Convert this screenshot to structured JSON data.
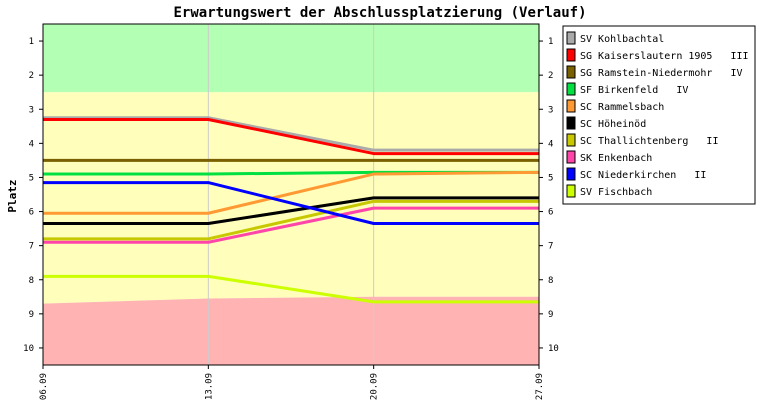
{
  "chart_data": {
    "type": "line",
    "title": "Erwartungswert der Abschlussplatzierung (Verlauf)",
    "ylabel": "Platz",
    "xlabel": "",
    "x": [
      "06.09",
      "13.09",
      "20.09",
      "27.09"
    ],
    "ylim": [
      0.5,
      10.5
    ],
    "y_inverted": true,
    "y_ticks": [
      "1",
      "2",
      "3",
      "4",
      "5",
      "6",
      "7",
      "8",
      "9",
      "10"
    ],
    "bands": [
      {
        "name": "aufstieg",
        "color": "#b3ffb3",
        "upper": [
          2.5,
          2.5,
          2.5,
          2.5
        ]
      },
      {
        "name": "mittelfeld",
        "color": "#ffffbb",
        "upper": [
          8.7,
          8.55,
          8.5,
          8.5
        ]
      },
      {
        "name": "abstieg",
        "color": "#ffb3b3",
        "upper": [
          10.5,
          10.5,
          10.5,
          10.5
        ]
      }
    ],
    "legend_position": "top-right",
    "series": [
      {
        "name": "SV Kohlbachtal",
        "color": "#aaaaaa",
        "values": [
          3.25,
          3.25,
          4.2,
          4.2
        ]
      },
      {
        "name": "SG Kaiserslautern 1905   III",
        "color": "#ff0000",
        "values": [
          3.3,
          3.3,
          4.3,
          4.3
        ]
      },
      {
        "name": "SG Ramstein-Niedermohr   IV",
        "color": "#7a6000",
        "values": [
          4.5,
          4.5,
          4.5,
          4.5
        ]
      },
      {
        "name": "SF Birkenfeld   IV",
        "color": "#00e040",
        "values": [
          4.9,
          4.9,
          4.85,
          4.85
        ]
      },
      {
        "name": "SC Rammelsbach",
        "color": "#ff9933",
        "values": [
          6.05,
          6.05,
          4.9,
          4.85
        ]
      },
      {
        "name": "SC Höheinöd",
        "color": "#000000",
        "values": [
          6.35,
          6.35,
          5.6,
          5.6
        ]
      },
      {
        "name": "SC Thallichtenberg   II",
        "color": "#c8c800",
        "values": [
          6.8,
          6.8,
          5.7,
          5.7
        ]
      },
      {
        "name": "SK Enkenbach",
        "color": "#ff44aa",
        "values": [
          6.9,
          6.9,
          5.9,
          5.9
        ]
      },
      {
        "name": "SC Niederkirchen   II",
        "color": "#0000ff",
        "values": [
          5.15,
          5.15,
          6.35,
          6.35
        ]
      },
      {
        "name": "SV Fischbach",
        "color": "#ccff00",
        "values": [
          7.9,
          7.9,
          8.65,
          8.65
        ]
      }
    ]
  }
}
